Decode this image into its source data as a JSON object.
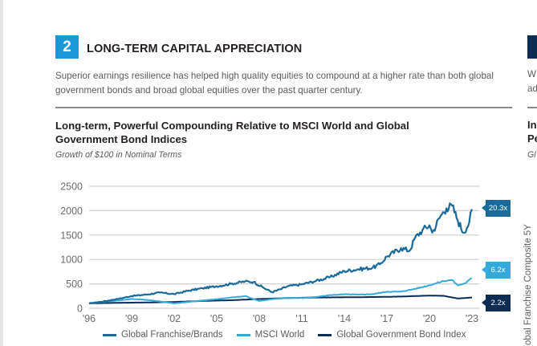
{
  "section": {
    "number": "2",
    "title": "LONG-TERM CAPITAL APPRECIATION",
    "description": "Superior earnings resilience has helped high quality equities to compound at a higher rate than both global government bonds and broad global equities over the past quarter century."
  },
  "next_section": {
    "desc_fragment_1": "W",
    "desc_fragment_2": "ad",
    "title_fragment_1": "In",
    "title_fragment_2": "Pe",
    "subtitle_fragment": "Gl",
    "axis_label_fragment": "obal Franchise Composite 5Y"
  },
  "colors": {
    "accent": "#1a99d6",
    "franchise": "#1b6a9c",
    "msci": "#35a9dc",
    "bond": "#0d2c54",
    "grid": "#cfcfcf"
  },
  "chart_data": {
    "type": "line",
    "title": "Long-term, Powerful Compounding Relative to MSCI World and Global Government Bond Indices",
    "subtitle": "Growth of $100 in Nominal Terms",
    "xlabel": "",
    "ylabel": "",
    "ylim": [
      0,
      2500
    ],
    "xlim": [
      1996,
      2023
    ],
    "yticks": [
      0,
      500,
      1000,
      1500,
      2000,
      2500
    ],
    "xtick_labels": [
      "'96",
      "'99",
      "'02",
      "'05",
      "'08",
      "'11",
      "'14",
      "'17",
      "'20",
      "'23"
    ],
    "xtick_values": [
      1996,
      1999,
      2002,
      2005,
      2008,
      2011,
      2014,
      2017,
      2020,
      2023
    ],
    "grid": true,
    "legend_position": "bottom",
    "series": [
      {
        "name": "Global Franchise/Brands",
        "end_label": "20.3x",
        "x": [
          1996,
          1997,
          1998,
          1999,
          2000,
          2001,
          2002,
          2003,
          2004,
          2005,
          2006,
          2007,
          2007.6,
          2008.3,
          2008.9,
          2009.5,
          2010,
          2011,
          2012,
          2013,
          2014,
          2015,
          2016,
          2016.5,
          2017,
          2018,
          2018.6,
          2019,
          2019.5,
          2020,
          2020.2,
          2020.8,
          2021.2,
          2021.6,
          2022.0,
          2022.4,
          2022.8,
          2023
        ],
        "values": [
          100,
          140,
          190,
          250,
          280,
          320,
          290,
          360,
          410,
          450,
          500,
          550,
          540,
          420,
          330,
          390,
          450,
          490,
          560,
          640,
          760,
          800,
          830,
          900,
          1060,
          1230,
          1180,
          1450,
          1600,
          1700,
          1550,
          1900,
          2050,
          2100,
          1800,
          1550,
          1750,
          2030
        ]
      },
      {
        "name": "MSCI World",
        "end_label": "6.2x",
        "x": [
          1996,
          1997,
          1998,
          1999,
          2000,
          2001,
          2002,
          2003,
          2004,
          2005,
          2006,
          2007,
          2008,
          2009,
          2010,
          2011,
          2012,
          2013,
          2014,
          2015,
          2016,
          2017,
          2018,
          2019,
          2020,
          2021,
          2021.6,
          2022,
          2022.5,
          2023
        ],
        "values": [
          100,
          130,
          160,
          190,
          175,
          140,
          100,
          130,
          160,
          185,
          220,
          250,
          150,
          190,
          215,
          210,
          230,
          270,
          285,
          280,
          290,
          340,
          340,
          400,
          470,
          560,
          580,
          470,
          510,
          620
        ]
      },
      {
        "name": "Global Government Bond Index",
        "end_label": "2.2x",
        "x": [
          1996,
          1998,
          2000,
          2002,
          2004,
          2006,
          2008,
          2010,
          2012,
          2014,
          2016,
          2018,
          2020,
          2021,
          2022,
          2023
        ],
        "values": [
          100,
          112,
          118,
          130,
          150,
          165,
          190,
          210,
          220,
          225,
          230,
          240,
          260,
          255,
          200,
          220
        ]
      }
    ]
  }
}
